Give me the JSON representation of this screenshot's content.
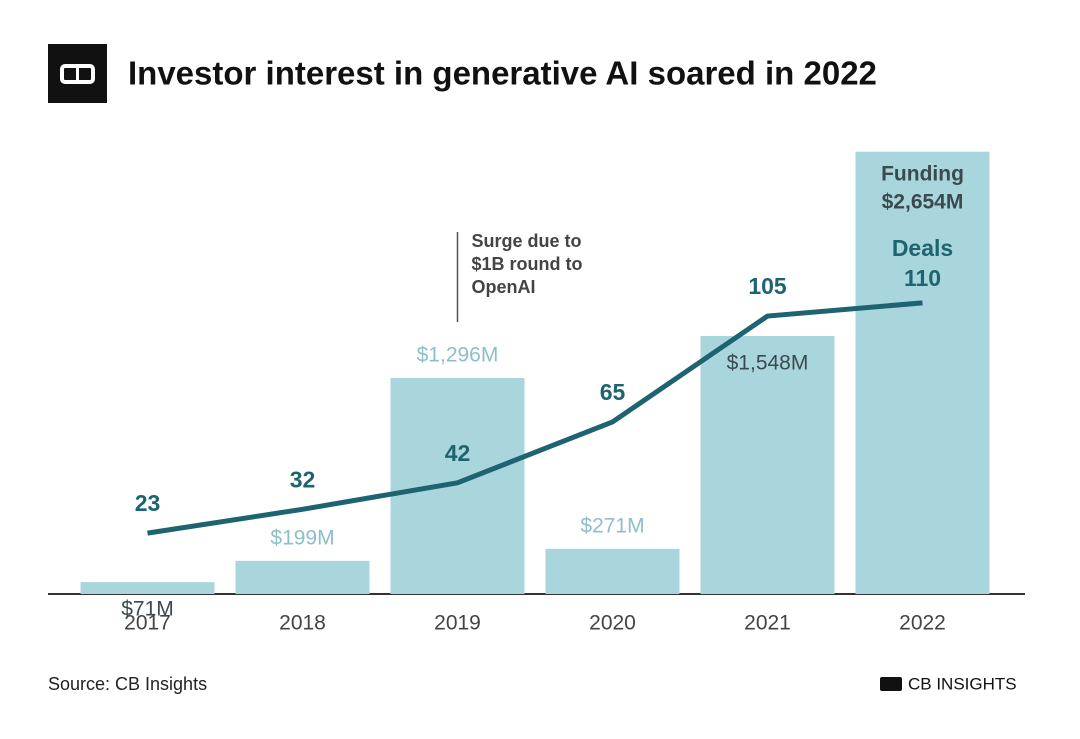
{
  "title": "Investor interest in generative AI soared in 2022",
  "chart_data": {
    "type": "bar-line",
    "categories": [
      "2017",
      "2018",
      "2019",
      "2020",
      "2021",
      "2022"
    ],
    "series": [
      {
        "name": "Funding",
        "type": "bar",
        "color": "#a9d5dd",
        "values": [
          71,
          199,
          1296,
          271,
          1548,
          2654
        ],
        "value_labels": [
          "$71M",
          "$199M",
          "$1,296M",
          "$271M",
          "$1,548M",
          "$2,654M"
        ]
      },
      {
        "name": "Deals",
        "type": "line",
        "axis": "y2",
        "color": "#1d6470",
        "values": [
          23,
          32,
          42,
          65,
          105,
          110
        ]
      }
    ],
    "ylim": [
      0,
      2700
    ],
    "y2lim": [
      0,
      170
    ],
    "annotation": {
      "category": 2,
      "lines": [
        "Surge due to",
        "$1B round to",
        "OpenAI"
      ]
    }
  },
  "source": "Source: CB Insights",
  "brand": "CB INSIGHTS"
}
